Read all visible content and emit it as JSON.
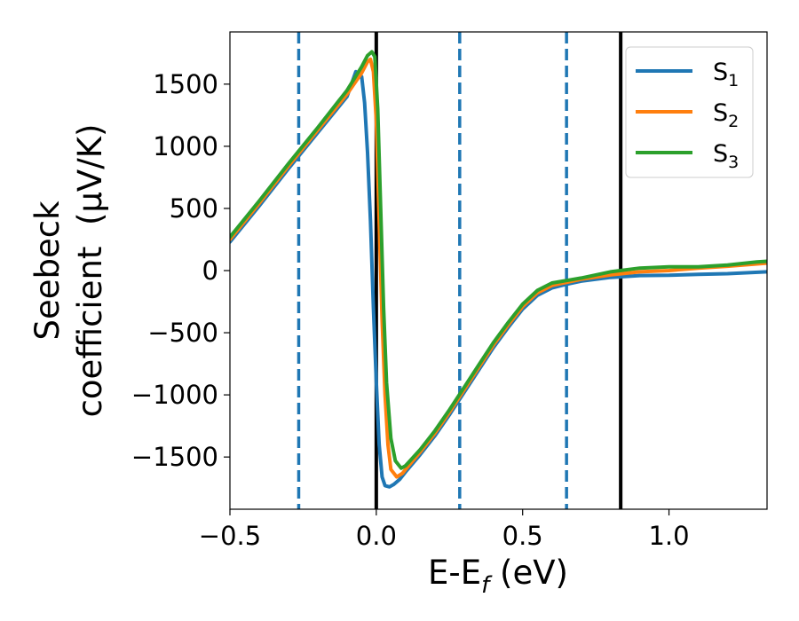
{
  "chart_data": {
    "type": "line",
    "xlabel": "E-E_f (eV)",
    "xlabel_parts": {
      "main": "E-E",
      "sub": "f",
      "rest": " (eV)"
    },
    "ylabel": "Seebeck coefficient (μV/K)",
    "ylabel_lines": [
      "Seebeck",
      "coefficient  (μV/K)"
    ],
    "xlim": [
      -0.5,
      1.335
    ],
    "ylim": [
      -1920,
      1920
    ],
    "xticks": [
      -0.5,
      0.0,
      0.5,
      1.0
    ],
    "xtick_labels": [
      "−0.5",
      "0.0",
      "0.5",
      "1.0"
    ],
    "yticks": [
      -1500,
      -1000,
      -500,
      0,
      500,
      1000,
      1500
    ],
    "ytick_labels": [
      "−1500",
      "−1000",
      "−500",
      "0",
      "500",
      "1000",
      "1500"
    ],
    "grid": false,
    "legend_position": "top-right",
    "vertical_lines": [
      {
        "x": -0.265,
        "color": "#1f77b4",
        "style": "dashed"
      },
      {
        "x": 0.0,
        "color": "#000000",
        "style": "solid"
      },
      {
        "x": 0.285,
        "color": "#1f77b4",
        "style": "dashed"
      },
      {
        "x": 0.65,
        "color": "#1f77b4",
        "style": "dashed"
      },
      {
        "x": 0.835,
        "color": "#000000",
        "style": "solid"
      }
    ],
    "series": [
      {
        "name": "S_1",
        "label_main": "S",
        "label_sub": "1",
        "color": "#1f77b4",
        "x": [
          -0.5,
          -0.4,
          -0.3,
          -0.2,
          -0.1,
          -0.07,
          -0.05,
          -0.04,
          -0.03,
          -0.02,
          -0.01,
          0.0,
          0.01,
          0.02,
          0.03,
          0.045,
          0.06,
          0.08,
          0.1,
          0.15,
          0.2,
          0.25,
          0.3,
          0.35,
          0.4,
          0.45,
          0.5,
          0.55,
          0.6,
          0.65,
          0.7,
          0.8,
          0.9,
          1.0,
          1.1,
          1.2,
          1.335
        ],
        "y": [
          230,
          520,
          820,
          1110,
          1400,
          1600,
          1560,
          1350,
          950,
          400,
          -300,
          -900,
          -1400,
          -1660,
          -1730,
          -1740,
          -1720,
          -1680,
          -1620,
          -1480,
          -1330,
          -1160,
          -980,
          -800,
          -620,
          -460,
          -310,
          -200,
          -140,
          -110,
          -85,
          -55,
          -40,
          -38,
          -30,
          -25,
          -10
        ]
      },
      {
        "name": "S_2",
        "label_main": "S",
        "label_sub": "2",
        "color": "#ff7f0e",
        "x": [
          -0.5,
          -0.4,
          -0.3,
          -0.2,
          -0.1,
          -0.05,
          -0.03,
          -0.02,
          -0.01,
          0.0,
          0.01,
          0.02,
          0.03,
          0.04,
          0.05,
          0.07,
          0.09,
          0.1,
          0.15,
          0.2,
          0.25,
          0.3,
          0.35,
          0.4,
          0.45,
          0.5,
          0.55,
          0.6,
          0.65,
          0.7,
          0.8,
          0.9,
          1.0,
          1.1,
          1.2,
          1.335
        ],
        "y": [
          250,
          540,
          840,
          1130,
          1420,
          1590,
          1680,
          1700,
          1600,
          1200,
          400,
          -400,
          -1000,
          -1400,
          -1600,
          -1660,
          -1630,
          -1600,
          -1460,
          -1310,
          -1140,
          -960,
          -780,
          -600,
          -440,
          -290,
          -180,
          -120,
          -95,
          -70,
          -35,
          -10,
          0,
          20,
          35,
          60
        ]
      },
      {
        "name": "S_3",
        "label_main": "S",
        "label_sub": "3",
        "color": "#2ca02c",
        "x": [
          -0.5,
          -0.4,
          -0.3,
          -0.2,
          -0.1,
          -0.05,
          -0.03,
          -0.015,
          -0.005,
          0.005,
          0.015,
          0.025,
          0.035,
          0.05,
          0.065,
          0.085,
          0.1,
          0.15,
          0.2,
          0.25,
          0.3,
          0.35,
          0.4,
          0.45,
          0.5,
          0.55,
          0.6,
          0.65,
          0.7,
          0.8,
          0.9,
          1.0,
          1.1,
          1.2,
          1.3,
          1.335
        ],
        "y": [
          270,
          560,
          860,
          1150,
          1450,
          1640,
          1730,
          1760,
          1720,
          1300,
          500,
          -300,
          -900,
          -1350,
          -1530,
          -1590,
          -1570,
          -1440,
          -1290,
          -1120,
          -940,
          -760,
          -580,
          -420,
          -270,
          -160,
          -100,
          -80,
          -60,
          -10,
          20,
          30,
          30,
          45,
          70,
          75
        ]
      }
    ]
  }
}
